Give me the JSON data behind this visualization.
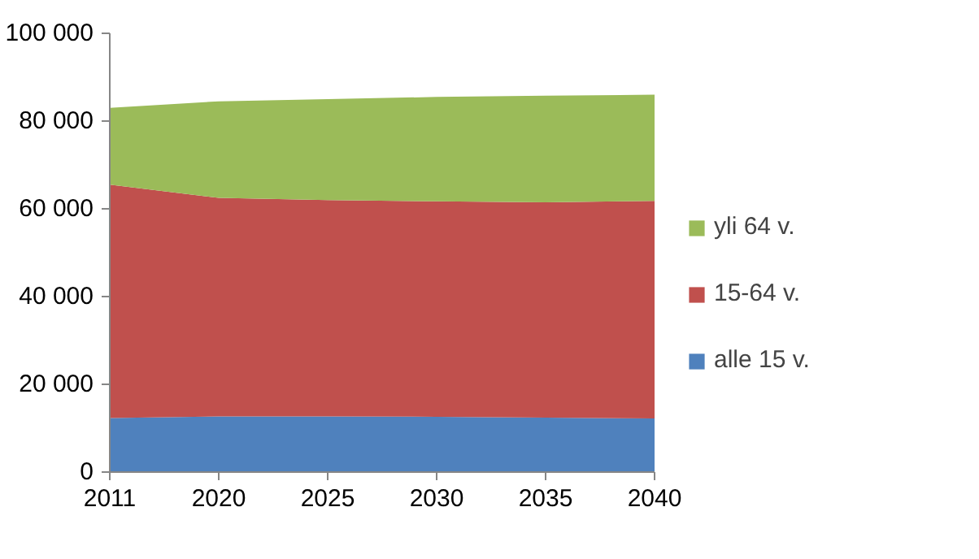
{
  "chart_data": {
    "type": "area",
    "stacked": true,
    "categories": [
      "2011",
      "2020",
      "2025",
      "2030",
      "2035",
      "2040"
    ],
    "series": [
      {
        "name": "alle 15 v.",
        "color": "#4f81bd",
        "values": [
          12300,
          12700,
          12700,
          12600,
          12400,
          12200
        ]
      },
      {
        "name": "15-64 v.",
        "color": "#c0504d",
        "values": [
          53200,
          49800,
          49300,
          49100,
          49100,
          49600
        ]
      },
      {
        "name": "yli 64 v.",
        "color": "#9bbb59",
        "values": [
          17500,
          22000,
          23000,
          23800,
          24300,
          24200
        ]
      }
    ],
    "ylim": [
      0,
      100000
    ],
    "yticks": [
      0,
      {
        "value": 20000,
        "label": "20 000"
      },
      {
        "value": 40000,
        "label": "40 000"
      },
      {
        "value": 60000,
        "label": "60 000"
      },
      {
        "value": 80000,
        "label": "80 000"
      },
      {
        "value": 100000,
        "label": "100 000"
      }
    ],
    "grid": false,
    "legend": "right"
  }
}
